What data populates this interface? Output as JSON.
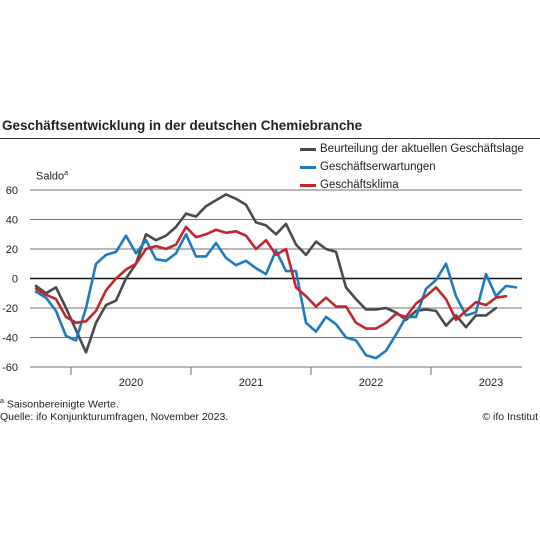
{
  "chart_data": {
    "type": "line",
    "title": "Geschäftsentwicklung in der deutschen Chemiebranche",
    "ylabel": "Saldo",
    "ylabel_superscript": "a",
    "ylim": [
      -60,
      60
    ],
    "y_ticks": [
      60,
      40,
      20,
      0,
      -20,
      -40,
      -60
    ],
    "x_tick_labels": [
      "2020",
      "2021",
      "2022",
      "2023"
    ],
    "x_start": "2019-09",
    "grid": true,
    "legend_position": "top-right",
    "series": [
      {
        "name": "Beurteilung der aktuellen Geschäftslage",
        "color": "#4a4a4a",
        "values": [
          -5,
          -10,
          -6,
          -20,
          -35,
          -50,
          -30,
          -18,
          -15,
          0,
          10,
          30,
          26,
          29,
          35,
          44,
          42,
          49,
          53,
          57,
          54,
          50,
          38,
          36,
          30,
          37,
          23,
          16,
          25,
          20,
          18,
          -6,
          -14,
          -21,
          -21,
          -20,
          -23,
          -28,
          -22,
          -21,
          -22,
          -32,
          -25,
          -33,
          -25,
          -25,
          -20
        ]
      },
      {
        "name": "Geschäftserwartungen",
        "color": "#1f7bc0",
        "values": [
          -9,
          -13,
          -22,
          -39,
          -42,
          -20,
          10,
          16,
          18,
          29,
          17,
          26,
          13,
          12,
          17,
          30,
          15,
          15,
          24,
          14,
          9,
          12,
          7,
          3,
          19,
          5,
          5,
          -30,
          -36,
          -26,
          -31,
          -40,
          -42,
          -52,
          -54,
          -49,
          -38,
          -26,
          -26,
          -7,
          -1,
          10,
          -12,
          -25,
          -23,
          3,
          -12,
          -5,
          -6
        ]
      },
      {
        "name": "Geschäftsklima",
        "color": "#c0272d",
        "values": [
          -7,
          -11,
          -14,
          -26,
          -30,
          -29,
          -22,
          -8,
          0,
          6,
          10,
          20,
          22,
          20,
          23,
          35,
          28,
          30,
          33,
          31,
          32,
          29,
          20,
          26,
          16,
          20,
          -6,
          -12,
          -19,
          -13,
          -19,
          -19,
          -30,
          -34,
          -34,
          -30,
          -24,
          -26,
          -17,
          -12,
          -6,
          -14,
          -28,
          -22,
          -16,
          -18,
          -13,
          -12
        ]
      }
    ]
  },
  "footnote": "Saisonbereinigte Werte.",
  "footnote_marker": "a",
  "source": "Quelle: ifo Konjunkturumfragen, November 2023.",
  "credit": "© ifo Institut"
}
